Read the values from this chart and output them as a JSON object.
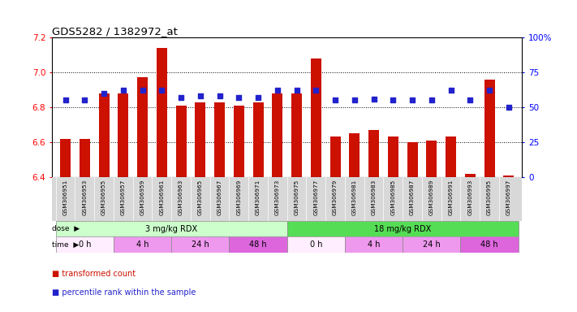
{
  "title": "GDS5282 / 1382972_at",
  "samples": [
    "GSM306951",
    "GSM306953",
    "GSM306955",
    "GSM306957",
    "GSM306959",
    "GSM306961",
    "GSM306963",
    "GSM306965",
    "GSM306967",
    "GSM306969",
    "GSM306971",
    "GSM306973",
    "GSM306975",
    "GSM306977",
    "GSM306979",
    "GSM306981",
    "GSM306983",
    "GSM306985",
    "GSM306987",
    "GSM306989",
    "GSM306991",
    "GSM306993",
    "GSM306995",
    "GSM306997"
  ],
  "transformed_count": [
    6.62,
    6.62,
    6.88,
    6.88,
    6.97,
    7.14,
    6.81,
    6.83,
    6.83,
    6.81,
    6.83,
    6.88,
    6.88,
    7.08,
    6.63,
    6.65,
    6.67,
    6.63,
    6.6,
    6.61,
    6.63,
    6.42,
    6.96,
    6.41
  ],
  "percentile_rank": [
    55,
    55,
    60,
    62,
    62,
    62,
    57,
    58,
    58,
    57,
    57,
    62,
    62,
    62,
    55,
    55,
    56,
    55,
    55,
    55,
    62,
    55,
    62,
    50
  ],
  "ylim": [
    6.4,
    7.2
  ],
  "yticks_left": [
    6.4,
    6.6,
    6.8,
    7.0,
    7.2
  ],
  "yticks_right": [
    0,
    25,
    50,
    75,
    100
  ],
  "right_ylim": [
    0,
    100
  ],
  "bar_color": "#cc1100",
  "dot_color": "#2222cc",
  "dose_groups": [
    {
      "label": "3 mg/kg RDX",
      "start": 0,
      "end": 12,
      "color": "#ccffcc"
    },
    {
      "label": "18 mg/kg RDX",
      "start": 12,
      "end": 24,
      "color": "#55dd55"
    }
  ],
  "time_colors": {
    "0 h": "#ffeeff",
    "4 h": "#ee99ee",
    "24 h": "#ee99ee",
    "48 h": "#dd66dd"
  },
  "time_groups": [
    {
      "label": "0 h",
      "start": 0,
      "end": 3
    },
    {
      "label": "4 h",
      "start": 3,
      "end": 6
    },
    {
      "label": "24 h",
      "start": 6,
      "end": 9
    },
    {
      "label": "48 h",
      "start": 9,
      "end": 12
    },
    {
      "label": "0 h",
      "start": 12,
      "end": 15
    },
    {
      "label": "4 h",
      "start": 15,
      "end": 18
    },
    {
      "label": "24 h",
      "start": 18,
      "end": 21
    },
    {
      "label": "48 h",
      "start": 21,
      "end": 24
    }
  ],
  "xlabel_bg": "#d8d8d8",
  "legend_items": [
    {
      "label": "transformed count",
      "color": "#cc1100"
    },
    {
      "label": "percentile rank within the sample",
      "color": "#2222cc"
    }
  ]
}
